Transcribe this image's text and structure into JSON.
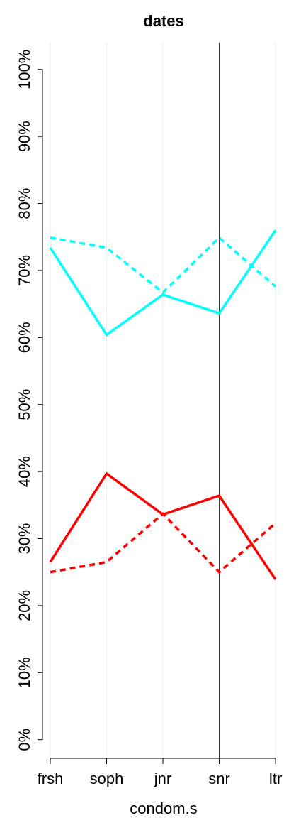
{
  "chart_data": {
    "type": "line",
    "title": "dates",
    "x_label": "condom.s",
    "categories": [
      "frsh",
      "soph",
      "jnr",
      "snr",
      "ltr"
    ],
    "series": [
      {
        "color": "#00ffff",
        "dashed": false,
        "values": [
          73.4,
          60.4,
          66.4,
          63.6,
          76.0
        ]
      },
      {
        "color": "#00ffff",
        "dashed": true,
        "values": [
          74.9,
          73.4,
          66.7,
          74.9,
          67.6
        ]
      },
      {
        "color": "#ff0000",
        "dashed": false,
        "values": [
          26.5,
          39.7,
          33.6,
          36.4,
          23.9
        ]
      },
      {
        "color": "#ff0000",
        "dashed": true,
        "values": [
          25.0,
          26.5,
          33.7,
          25.0,
          32.3
        ]
      }
    ],
    "ylim": [
      -3,
      104
    ],
    "yticks": [
      {
        "value": 0,
        "label": "0%"
      },
      {
        "value": 10,
        "label": "10%"
      },
      {
        "value": 20,
        "label": "20%"
      },
      {
        "value": 30,
        "label": "30%"
      },
      {
        "value": 40,
        "label": "40%"
      },
      {
        "value": 50,
        "label": "50%"
      },
      {
        "value": 60,
        "label": "60%"
      },
      {
        "value": 70,
        "label": "70%"
      },
      {
        "value": 80,
        "label": "80%"
      },
      {
        "value": 90,
        "label": "90%"
      },
      {
        "value": 100,
        "label": "100%"
      }
    ],
    "grid": true,
    "vline": "snr"
  }
}
